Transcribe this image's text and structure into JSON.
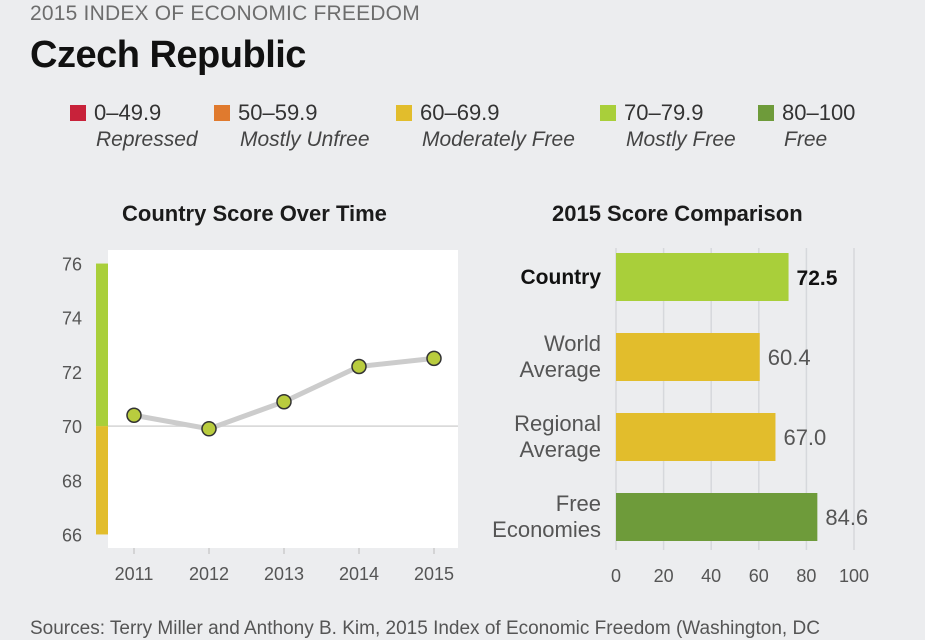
{
  "header": {
    "supertitle": "2015 INDEX OF ECONOMIC FREEDOM",
    "country": "Czech Republic"
  },
  "legend": [
    {
      "range": "0–49.9",
      "label": "Repressed",
      "color": "#c8223a"
    },
    {
      "range": "50–59.9",
      "label": "Mostly Unfree",
      "color": "#e07a2e"
    },
    {
      "range": "60–69.9",
      "label": "Moderately Free",
      "color": "#e2bd2c"
    },
    {
      "range": "70–79.9",
      "label": "Mostly Free",
      "color": "#a9cf3a"
    },
    {
      "range": "80–100",
      "label": "Free",
      "color": "#6e9b3a"
    }
  ],
  "footer": {
    "sources": "Sources: Terry Miller and Anthony B. Kim, 2015 Index of Economic Freedom (Washington, DC"
  },
  "chart_data": [
    {
      "type": "line",
      "title": "Country Score Over Time",
      "x": [
        2011,
        2012,
        2013,
        2014,
        2015
      ],
      "y": [
        70.4,
        69.9,
        70.9,
        72.2,
        72.5
      ],
      "ylim": [
        65.5,
        76.5
      ],
      "yticks": [
        66,
        68,
        70,
        72,
        74,
        76
      ],
      "category_bands": [
        {
          "from": 66,
          "to": 70,
          "color": "#e2bd2c"
        },
        {
          "from": 70,
          "to": 76,
          "color": "#a9cf3a"
        }
      ],
      "reference_line": 70,
      "line_color": "#cccccc",
      "point_color": "#b9cc3e"
    },
    {
      "type": "bar",
      "orientation": "horizontal",
      "title": "2015 Score Comparison",
      "categories": [
        "Country",
        "World Average",
        "Regional Average",
        "Free Economies"
      ],
      "category_lines": [
        [
          "Country"
        ],
        [
          "World",
          "Average"
        ],
        [
          "Regional",
          "Average"
        ],
        [
          "Free",
          "Economies"
        ]
      ],
      "values": [
        72.5,
        60.4,
        67.0,
        84.6
      ],
      "value_labels": [
        "72.5",
        "60.4",
        "67.0",
        "84.6"
      ],
      "colors": [
        "#a9cf3a",
        "#e2bd2c",
        "#e2bd2c",
        "#6e9b3a"
      ],
      "highlight": [
        true,
        false,
        false,
        false
      ],
      "xlim": [
        0,
        100
      ],
      "xticks": [
        0,
        20,
        40,
        60,
        80,
        100
      ]
    }
  ]
}
